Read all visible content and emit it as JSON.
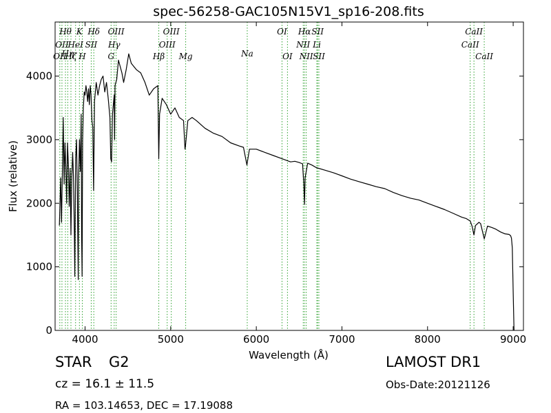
{
  "chart_data": {
    "type": "line",
    "title": "spec-56258-GAC105N15V1_sp16-208.fits",
    "xlabel": "Wavelength (Å)",
    "ylabel": "Flux (relative)",
    "xlim": [
      3650,
      9120
    ],
    "ylim": [
      0,
      4850
    ],
    "xticks": [
      4000,
      5000,
      6000,
      7000,
      8000,
      9000
    ],
    "yticks": [
      0,
      1000,
      2000,
      3000,
      4000
    ],
    "grid": false,
    "line_color": "#000000",
    "marker_color": "#2ca02c",
    "series": [
      {
        "x": [
          3700,
          3715,
          3725,
          3735,
          3745,
          3755,
          3765,
          3775,
          3785,
          3795,
          3805,
          3815,
          3825,
          3835,
          3845,
          3855,
          3865,
          3875,
          3880,
          3890,
          3900,
          3910,
          3920,
          3925,
          3935,
          3945,
          3955,
          3960,
          3965,
          3968,
          3972,
          3980,
          3990,
          4000,
          4010,
          4020,
          4030,
          4040,
          4050,
          4060,
          4070,
          4080,
          4090,
          4100,
          4102,
          4110,
          4130,
          4150,
          4170,
          4190,
          4210,
          4230,
          4250,
          4270,
          4290,
          4300,
          4310,
          4320,
          4340,
          4345,
          4350,
          4370,
          4390,
          4410,
          4430,
          4450,
          4480,
          4510,
          4540,
          4570,
          4600,
          4650,
          4700,
          4750,
          4800,
          4850,
          4861,
          4870,
          4900,
          4950,
          5000,
          5050,
          5100,
          5150,
          5167,
          5173,
          5183,
          5200,
          5250,
          5300,
          5400,
          5500,
          5600,
          5700,
          5800,
          5850,
          5890,
          5896,
          5920,
          6000,
          6100,
          6200,
          6300,
          6400,
          6450,
          6500,
          6540,
          6555,
          6563,
          6570,
          6600,
          6650,
          6700,
          6800,
          6900,
          7000,
          7100,
          7200,
          7300,
          7400,
          7500,
          7600,
          7700,
          7800,
          7900,
          8000,
          8100,
          8200,
          8300,
          8400,
          8450,
          8498,
          8520,
          8542,
          8560,
          8600,
          8620,
          8662,
          8700,
          8750,
          8800,
          8850,
          8900,
          8950,
          8970,
          8980,
          8990,
          9000,
          9010
        ],
        "y": [
          1650,
          2400,
          1700,
          2500,
          3350,
          2300,
          2950,
          2600,
          2000,
          2950,
          2600,
          1950,
          2550,
          1500,
          2400,
          2800,
          2400,
          1500,
          850,
          2700,
          3000,
          2200,
          800,
          2400,
          3000,
          2500,
          3400,
          1500,
          850,
          1800,
          3000,
          3500,
          3750,
          3700,
          3850,
          3750,
          3600,
          3800,
          3550,
          3850,
          3700,
          3300,
          3200,
          2200,
          2500,
          3600,
          3900,
          3700,
          3850,
          3950,
          4000,
          3750,
          3900,
          3650,
          3350,
          2700,
          2650,
          3400,
          3700,
          3000,
          3850,
          3950,
          4250,
          4150,
          4050,
          3900,
          4100,
          4350,
          4200,
          4150,
          4100,
          4050,
          3900,
          3700,
          3800,
          3850,
          2700,
          3400,
          3650,
          3550,
          3400,
          3500,
          3350,
          3300,
          2850,
          2900,
          3050,
          3300,
          3350,
          3300,
          3180,
          3100,
          3050,
          2950,
          2900,
          2880,
          2600,
          2650,
          2850,
          2850,
          2800,
          2750,
          2700,
          2650,
          2660,
          2640,
          2620,
          2300,
          1980,
          2400,
          2630,
          2600,
          2560,
          2520,
          2480,
          2430,
          2380,
          2340,
          2300,
          2260,
          2230,
          2170,
          2120,
          2080,
          2050,
          2000,
          1950,
          1900,
          1840,
          1780,
          1760,
          1720,
          1640,
          1500,
          1650,
          1700,
          1680,
          1440,
          1640,
          1620,
          1590,
          1550,
          1520,
          1510,
          1490,
          1450,
          1300,
          600,
          0
        ]
      }
    ],
    "lines": [
      {
        "wl": 3705,
        "labels": [
          "OII"
        ]
      },
      {
        "wl": 3730,
        "labels": [
          "OII"
        ]
      },
      {
        "wl": 3771,
        "labels": [
          "Hθ"
        ]
      },
      {
        "wl": 3798,
        "labels": [
          "Hη"
        ]
      },
      {
        "wl": 3835,
        "labels": [
          "Hζ"
        ]
      },
      {
        "wl": 3889,
        "labels": [
          "HeI"
        ]
      },
      {
        "wl": 3934,
        "labels": [
          "K"
        ]
      },
      {
        "wl": 3968,
        "labels": [
          "H"
        ]
      },
      {
        "wl": 4072,
        "labels": [
          "SII"
        ]
      },
      {
        "wl": 4102,
        "labels": [
          "Hδ"
        ]
      },
      {
        "wl": 4304,
        "labels": [
          "G"
        ]
      },
      {
        "wl": 4340,
        "labels": [
          "Hγ"
        ]
      },
      {
        "wl": 4363,
        "labels": [
          "OIII"
        ]
      },
      {
        "wl": 4861,
        "labels": [
          "Hβ"
        ]
      },
      {
        "wl": 4959,
        "labels": [
          "OIII"
        ]
      },
      {
        "wl": 5007,
        "labels": [
          "OIII"
        ]
      },
      {
        "wl": 5175,
        "labels": [
          "Mg"
        ]
      },
      {
        "wl": 5894,
        "labels": [
          "Na"
        ]
      },
      {
        "wl": 6300,
        "labels": [
          "OI"
        ]
      },
      {
        "wl": 6364,
        "labels": [
          "OI"
        ]
      },
      {
        "wl": 6548,
        "labels": [
          "NII"
        ]
      },
      {
        "wl": 6563,
        "labels": [
          "Hα"
        ]
      },
      {
        "wl": 6583,
        "labels": [
          "NII"
        ]
      },
      {
        "wl": 6707,
        "labels": [
          "Li"
        ]
      },
      {
        "wl": 6716,
        "labels": [
          "SII"
        ]
      },
      {
        "wl": 6731,
        "labels": [
          "SII"
        ]
      },
      {
        "wl": 8498,
        "labels": [
          "CaII"
        ]
      },
      {
        "wl": 8542,
        "labels": [
          "CaII"
        ]
      },
      {
        "wl": 8662,
        "labels": [
          "CaII"
        ]
      }
    ],
    "line_labels": [
      {
        "text": "Hθ",
        "wl": 3771,
        "row": 1
      },
      {
        "text": "K",
        "wl": 3934,
        "row": 1
      },
      {
        "text": "Hδ",
        "wl": 4102,
        "row": 1
      },
      {
        "text": "OIII",
        "wl": 4363,
        "row": 1
      },
      {
        "text": "OIII",
        "wl": 5007,
        "row": 1
      },
      {
        "text": "OI",
        "wl": 6300,
        "row": 1
      },
      {
        "text": "Hα",
        "wl": 6563,
        "row": 1
      },
      {
        "text": "SII",
        "wl": 6716,
        "row": 1
      },
      {
        "text": "CaII",
        "wl": 8542,
        "row": 1
      },
      {
        "text": "OII",
        "wl": 3730,
        "row": 2
      },
      {
        "text": "HeI",
        "wl": 3889,
        "row": 2
      },
      {
        "text": "SII",
        "wl": 4072,
        "row": 2
      },
      {
        "text": "Hγ",
        "wl": 4340,
        "row": 2
      },
      {
        "text": "OIII",
        "wl": 4959,
        "row": 2
      },
      {
        "text": "NII",
        "wl": 6548,
        "row": 2
      },
      {
        "text": "Li",
        "wl": 6707,
        "row": 2
      },
      {
        "text": "CaII",
        "wl": 8498,
        "row": 2
      },
      {
        "text": "Hη",
        "wl": 3798,
        "row": 3
      },
      {
        "text": "OII",
        "wl": 3705,
        "row": 4
      },
      {
        "text": "Hζ",
        "wl": 3835,
        "row": 4
      },
      {
        "text": "H",
        "wl": 3968,
        "row": 4
      },
      {
        "text": "G",
        "wl": 4304,
        "row": 4
      },
      {
        "text": "Hβ",
        "wl": 4861,
        "row": 4
      },
      {
        "text": "Mg",
        "wl": 5175,
        "row": 4
      },
      {
        "text": "Na",
        "wl": 5894,
        "row": 3
      },
      {
        "text": "OI",
        "wl": 6364,
        "row": 4
      },
      {
        "text": "NII",
        "wl": 6583,
        "row": 4
      },
      {
        "text": "SII",
        "wl": 6731,
        "row": 4
      },
      {
        "text": "CaII",
        "wl": 8662,
        "row": 4
      }
    ]
  },
  "info": {
    "class_label": "STAR",
    "subclass_label": "G2",
    "cz_label": "cz = 16.1",
    "cz_error": "± 11.5",
    "survey_label": "LAMOST DR1",
    "obs_date": "Obs-Date:20121126",
    "coords": "RA = 103.14653, DEC = 17.19088"
  }
}
